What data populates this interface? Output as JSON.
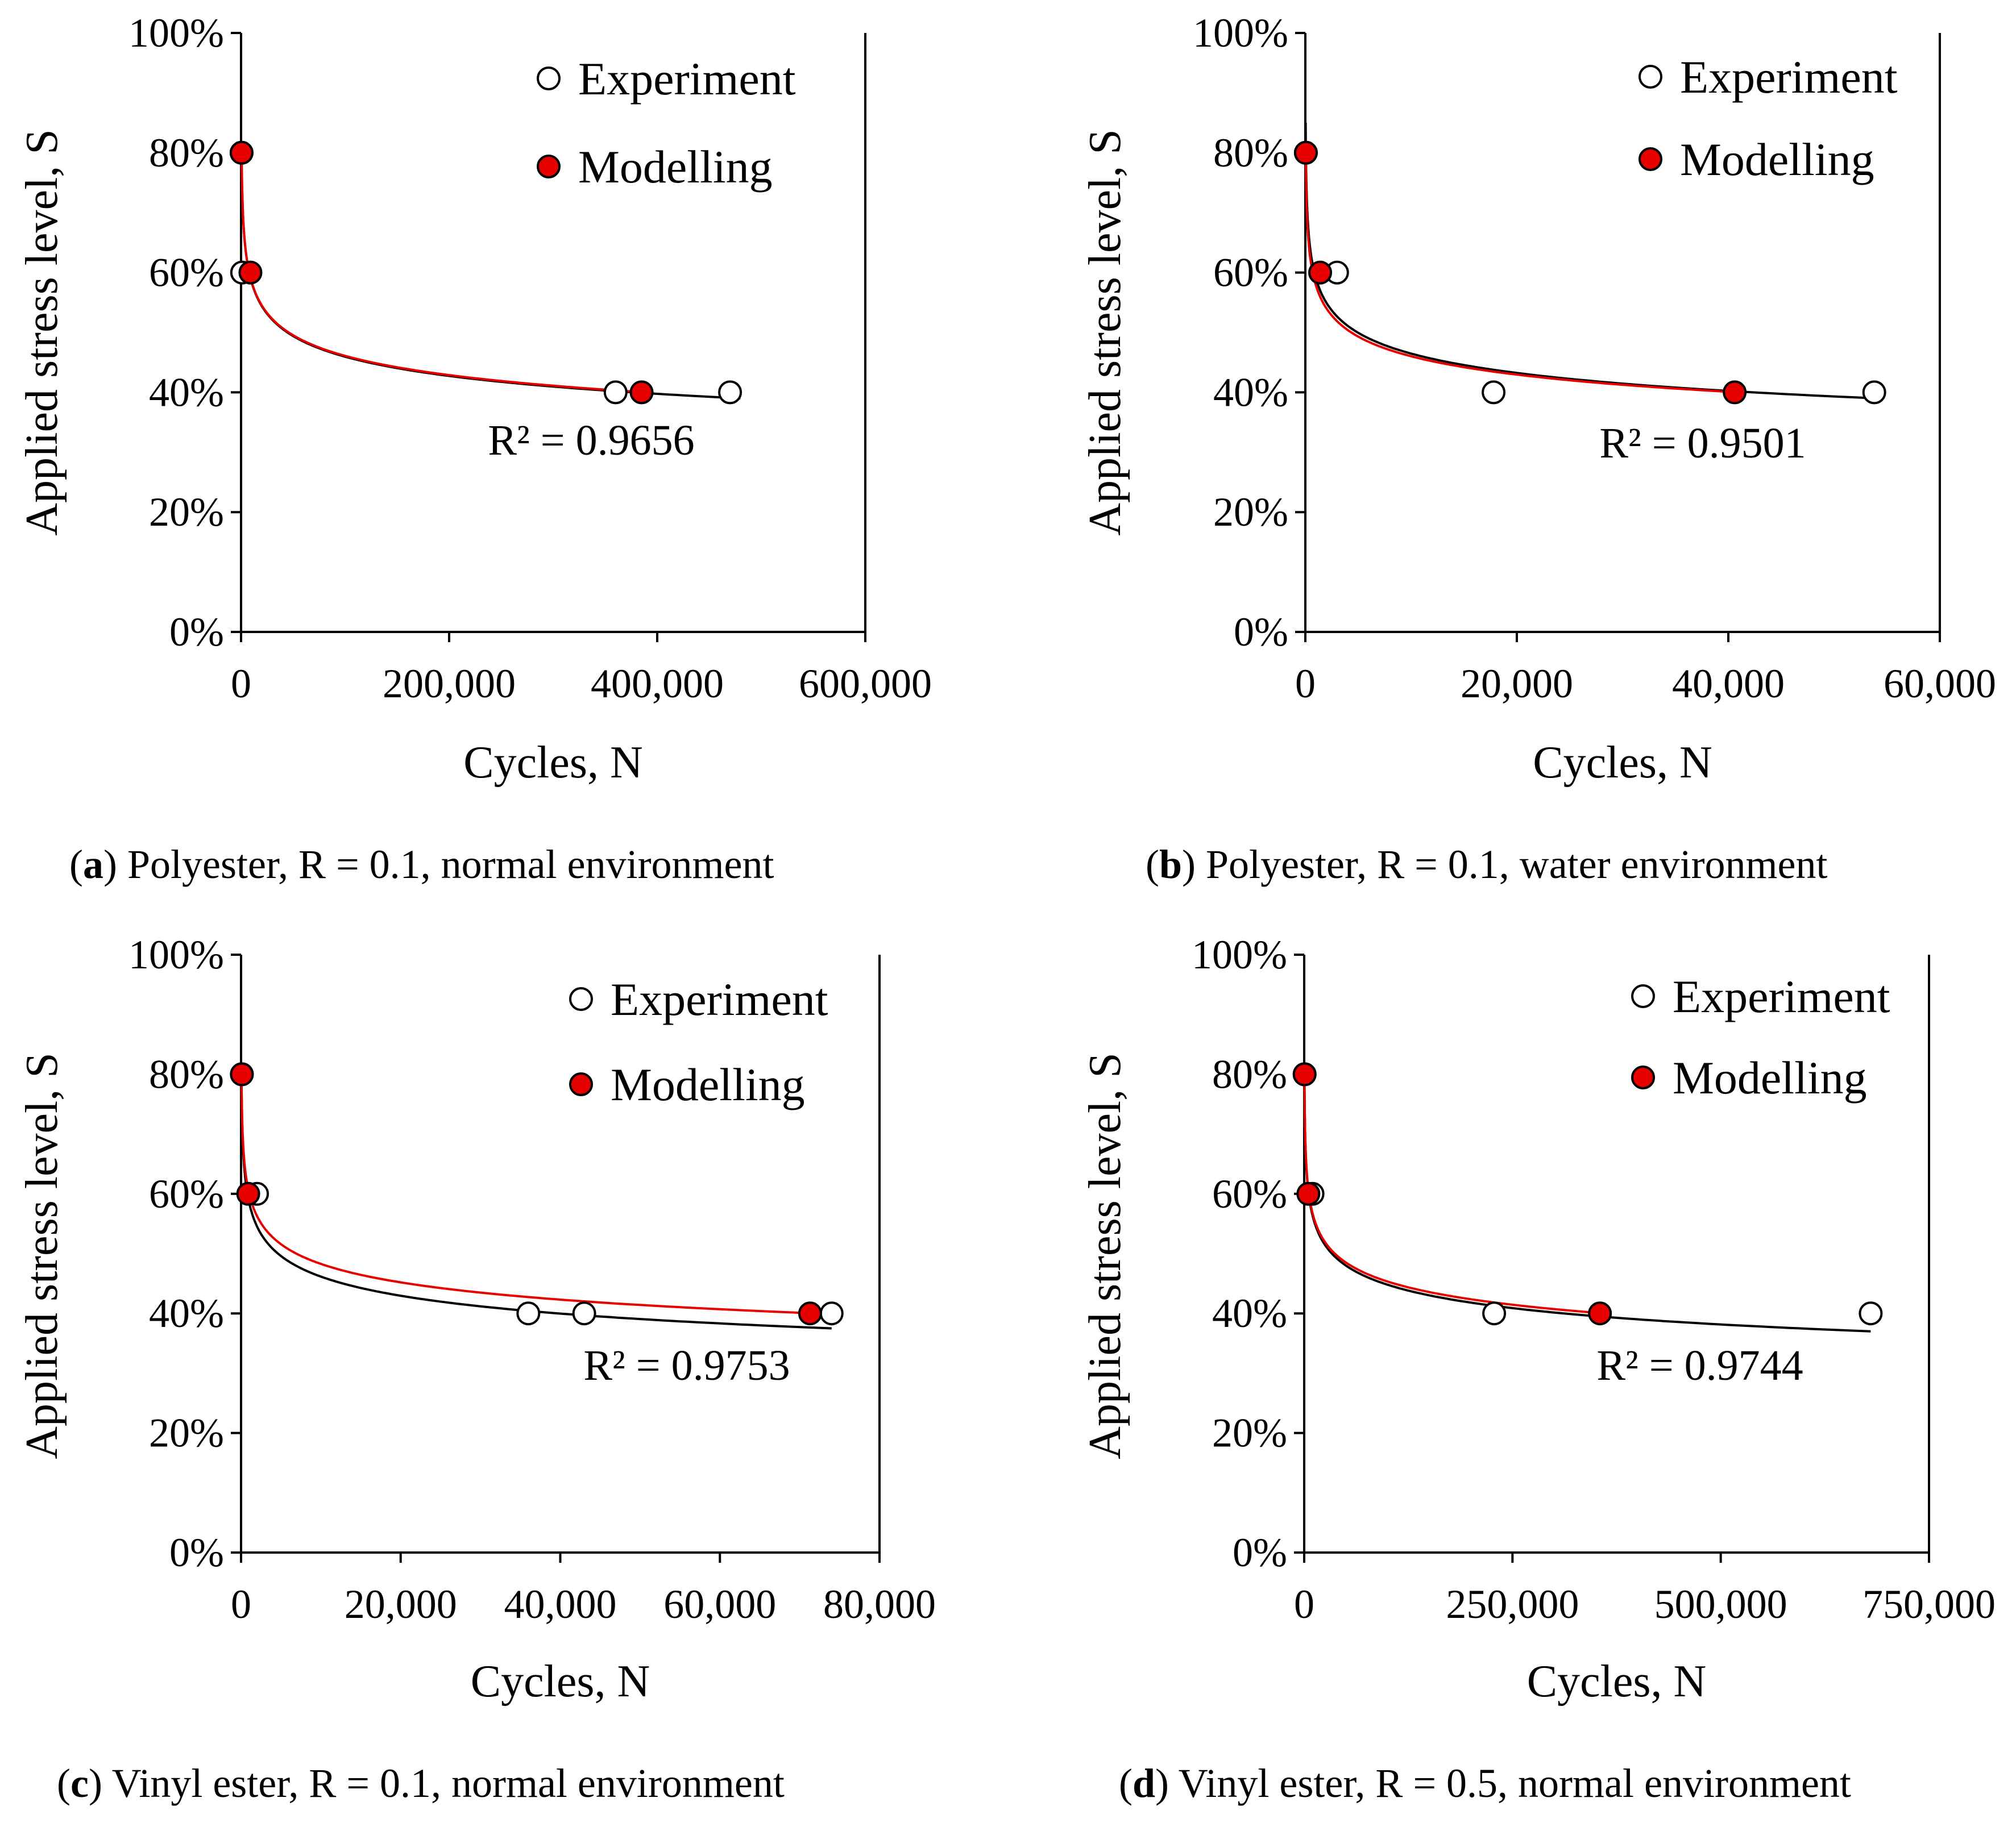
{
  "colors": {
    "experiment_fill": "#ffffff",
    "model_fill": "#e60000",
    "trend_experiment": "#000000",
    "trend_model": "#e60000",
    "axis": "#000000"
  },
  "chart_data": [
    {
      "type": "scatter",
      "panel_letter": "a",
      "caption": "Polyester, R = 0.1, normal environment",
      "xlabel": "Cycles, N",
      "ylabel": "Applied stress level, S",
      "xlim": [
        0,
        600000
      ],
      "ylim": [
        0,
        100
      ],
      "xticks": [
        0,
        200000,
        400000,
        600000
      ],
      "xtick_labels": [
        "0",
        "200,000",
        "400,000",
        "600,000"
      ],
      "yticks": [
        0,
        20,
        40,
        60,
        80,
        100
      ],
      "ytick_labels": [
        "0%",
        "20%",
        "40%",
        "60%",
        "80%",
        "100%"
      ],
      "legend": [
        "Experiment",
        "Modelling"
      ],
      "legend_position": "top-right",
      "r2_label": "R² = 0.9656",
      "series": [
        {
          "name": "Experiment",
          "marker": "open-circle",
          "x": [
            500,
            1000,
            360000,
            470000
          ],
          "y": [
            80,
            60,
            40,
            40
          ]
        },
        {
          "name": "Modelling",
          "marker": "filled-circle",
          "x": [
            500,
            9000,
            385000
          ],
          "y": [
            80,
            60,
            40
          ]
        }
      ],
      "trendlines": [
        {
          "name": "experiment-trend",
          "color": "black",
          "x_range": [
            500,
            480000
          ],
          "y_start": 80,
          "y_end": 39
        },
        {
          "name": "model-trend",
          "color": "red",
          "x_range": [
            500,
            390000
          ],
          "y_start": 80,
          "y_end": 40
        }
      ]
    },
    {
      "type": "scatter",
      "panel_letter": "b",
      "caption": "Polyester, R = 0.1, water environment",
      "xlabel": "Cycles, N",
      "ylabel": "Applied stress level, S",
      "xlim": [
        0,
        60000
      ],
      "ylim": [
        0,
        100
      ],
      "xticks": [
        0,
        20000,
        40000,
        60000
      ],
      "xtick_labels": [
        "0",
        "20,000",
        "40,000",
        "60,000"
      ],
      "yticks": [
        0,
        20,
        40,
        60,
        80,
        100
      ],
      "ytick_labels": [
        "0%",
        "20%",
        "40%",
        "60%",
        "80%",
        "100%"
      ],
      "legend": [
        "Experiment",
        "Modelling"
      ],
      "legend_position": "top-right",
      "r2_label": "R² = 0.9501",
      "series": [
        {
          "name": "Experiment",
          "marker": "open-circle",
          "x": [
            50,
            3000,
            17800,
            53800
          ],
          "y": [
            80,
            60,
            40,
            40
          ]
        },
        {
          "name": "Modelling",
          "marker": "filled-circle",
          "x": [
            50,
            1400,
            40600
          ],
          "y": [
            80,
            60,
            40
          ]
        }
      ],
      "trendlines": [
        {
          "name": "experiment-trend",
          "color": "black",
          "x_range": [
            30,
            54000
          ],
          "y_start": 85,
          "y_end": 39
        },
        {
          "name": "model-trend",
          "color": "red",
          "x_range": [
            30,
            41000
          ],
          "y_start": 82,
          "y_end": 40
        }
      ]
    },
    {
      "type": "scatter",
      "panel_letter": "c",
      "caption": "Vinyl ester, R = 0.1, normal environment",
      "xlabel": "Cycles, N",
      "ylabel": "Applied stress level, S",
      "xlim": [
        0,
        80000
      ],
      "ylim": [
        0,
        100
      ],
      "xticks": [
        0,
        20000,
        40000,
        60000,
        80000
      ],
      "xtick_labels": [
        "0",
        "20,000",
        "40,000",
        "60,000",
        "80,000"
      ],
      "yticks": [
        0,
        20,
        40,
        60,
        80,
        100
      ],
      "ytick_labels": [
        "0%",
        "20%",
        "40%",
        "60%",
        "80%",
        "100%"
      ],
      "legend": [
        "Experiment",
        "Modelling"
      ],
      "legend_position": "top-right",
      "r2_label": "R² = 0.9753",
      "series": [
        {
          "name": "Experiment",
          "marker": "open-circle",
          "x": [
            100,
            2000,
            36000,
            43000,
            74000
          ],
          "y": [
            80,
            60,
            40,
            40,
            40
          ]
        },
        {
          "name": "Modelling",
          "marker": "filled-circle",
          "x": [
            100,
            900,
            71300
          ],
          "y": [
            80,
            60,
            40
          ]
        }
      ],
      "trendlines": [
        {
          "name": "experiment-trend",
          "color": "black",
          "x_range": [
            50,
            74000
          ],
          "y_start": 80,
          "y_end": 37.5
        },
        {
          "name": "model-trend",
          "color": "red",
          "x_range": [
            50,
            72000
          ],
          "y_start": 80,
          "y_end": 40
        }
      ]
    },
    {
      "type": "scatter",
      "panel_letter": "d",
      "caption": "Vinyl ester, R = 0.5, normal environment",
      "xlabel": "Cycles, N",
      "ylabel": "Applied stress level, S",
      "xlim": [
        0,
        750000
      ],
      "ylim": [
        0,
        100
      ],
      "xticks": [
        0,
        250000,
        500000,
        750000
      ],
      "xtick_labels": [
        "0",
        "250,000",
        "500,000",
        "750,000"
      ],
      "yticks": [
        0,
        20,
        40,
        60,
        80,
        100
      ],
      "ytick_labels": [
        "0%",
        "20%",
        "40%",
        "60%",
        "80%",
        "100%"
      ],
      "legend": [
        "Experiment",
        "Modelling"
      ],
      "legend_position": "top-right",
      "r2_label": "R² = 0.9744",
      "series": [
        {
          "name": "Experiment",
          "marker": "open-circle",
          "x": [
            500,
            10000,
            228000,
            680000
          ],
          "y": [
            80,
            60,
            40,
            40
          ]
        },
        {
          "name": "Modelling",
          "marker": "filled-circle",
          "x": [
            500,
            5000,
            355000
          ],
          "y": [
            80,
            60,
            40
          ]
        }
      ],
      "trendlines": [
        {
          "name": "experiment-trend",
          "color": "black",
          "x_range": [
            300,
            680000
          ],
          "y_start": 80,
          "y_end": 37
        },
        {
          "name": "model-trend",
          "color": "red",
          "x_range": [
            300,
            360000
          ],
          "y_start": 80,
          "y_end": 40
        }
      ]
    }
  ]
}
